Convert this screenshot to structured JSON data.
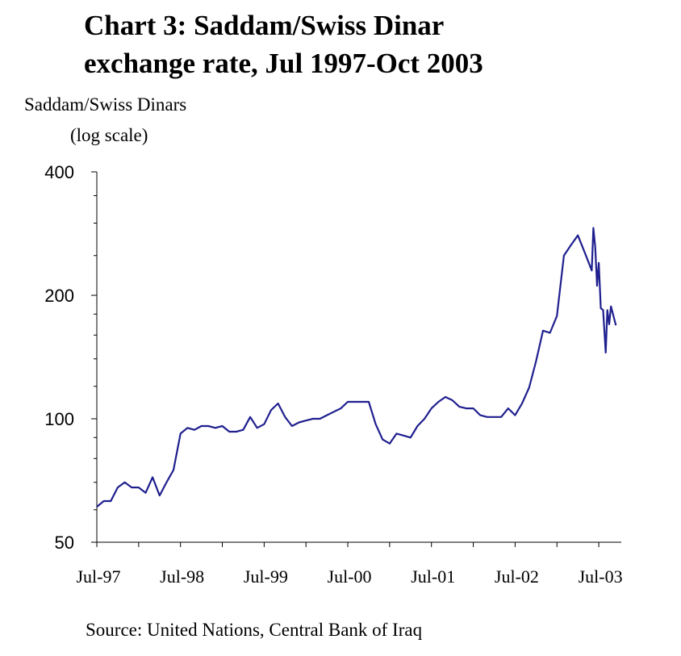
{
  "title_line1": "Chart 3: Saddam/Swiss Dinar",
  "title_line2": "exchange rate, Jul 1997-Oct 2003",
  "source": "Source: United Nations, Central Bank of Iraq",
  "chart_data": {
    "type": "line",
    "ylabel": "Saddam/Swiss Dinars",
    "ylabel_note": "(log scale)",
    "y_scale": "log",
    "ylim": [
      50,
      400
    ],
    "yticks": [
      50,
      100,
      200,
      400
    ],
    "ytick_labels": [
      "50",
      "100",
      "200",
      "400"
    ],
    "xlim": [
      "1997-07",
      "2003-10"
    ],
    "xtick_labels": [
      "Jul-97",
      "Jul-98",
      "Jul-99",
      "Jul-00",
      "Jul-01",
      "Jul-02",
      "Jul-03"
    ],
    "line_color": "#1f1f8f",
    "grid": false,
    "series": [
      {
        "points": [
          [
            "1997-07",
            61
          ],
          [
            "1997-08",
            63
          ],
          [
            "1997-09",
            63
          ],
          [
            "1997-10",
            68
          ],
          [
            "1997-11",
            70
          ],
          [
            "1997-12",
            68
          ],
          [
            "1998-01",
            68
          ],
          [
            "1998-02",
            66
          ],
          [
            "1998-03",
            72
          ],
          [
            "1998-04",
            65
          ],
          [
            "1998-05",
            70
          ],
          [
            "1998-06",
            75
          ],
          [
            "1998-07",
            92
          ],
          [
            "1998-08",
            95
          ],
          [
            "1998-09",
            94
          ],
          [
            "1998-10",
            96
          ],
          [
            "1998-11",
            96
          ],
          [
            "1998-12",
            95
          ],
          [
            "1999-01",
            96
          ],
          [
            "1999-02",
            93
          ],
          [
            "1999-03",
            93
          ],
          [
            "1999-04",
            94
          ],
          [
            "1999-05",
            101
          ],
          [
            "1999-06",
            95
          ],
          [
            "1999-07",
            97
          ],
          [
            "1999-08",
            105
          ],
          [
            "1999-09",
            109
          ],
          [
            "1999-10",
            101
          ],
          [
            "1999-11",
            96
          ],
          [
            "1999-12",
            98
          ],
          [
            "2000-01",
            99
          ],
          [
            "2000-02",
            100
          ],
          [
            "2000-03",
            100
          ],
          [
            "2000-04",
            102
          ],
          [
            "2000-05",
            104
          ],
          [
            "2000-06",
            106
          ],
          [
            "2000-07",
            110
          ],
          [
            "2000-08",
            110
          ],
          [
            "2000-09",
            110
          ],
          [
            "2000-10",
            110
          ],
          [
            "2000-11",
            97
          ],
          [
            "2000-12",
            89
          ],
          [
            "2001-01",
            87
          ],
          [
            "2001-02",
            92
          ],
          [
            "2001-03",
            91
          ],
          [
            "2001-04",
            90
          ],
          [
            "2001-05",
            96
          ],
          [
            "2001-06",
            100
          ],
          [
            "2001-07",
            106
          ],
          [
            "2001-08",
            110
          ],
          [
            "2001-09",
            113
          ],
          [
            "2001-10",
            111
          ],
          [
            "2001-11",
            107
          ],
          [
            "2001-12",
            106
          ],
          [
            "2002-01",
            106
          ],
          [
            "2002-02",
            102
          ],
          [
            "2002-03",
            101
          ],
          [
            "2002-04",
            101
          ],
          [
            "2002-05",
            101
          ],
          [
            "2002-06",
            106
          ],
          [
            "2002-07",
            102
          ],
          [
            "2002-08",
            109
          ],
          [
            "2002-09",
            119
          ],
          [
            "2002-10",
            138
          ],
          [
            "2002-11",
            164
          ],
          [
            "2002-12",
            162
          ],
          [
            "2003-01",
            178
          ],
          [
            "2003-02",
            250
          ],
          [
            "2003-03",
            265
          ],
          [
            "2003-04",
            280
          ],
          [
            "2003-05",
            254
          ],
          [
            "2003-06",
            230
          ],
          [
            "2003-06-08",
            292
          ],
          [
            "2003-06-16",
            262
          ],
          [
            "2003-06-24",
            211
          ],
          [
            "2003-07",
            240
          ],
          [
            "2003-07-10",
            186
          ],
          [
            "2003-07-20",
            184
          ],
          [
            "2003-08",
            145
          ],
          [
            "2003-08-08",
            184
          ],
          [
            "2003-08-16",
            170
          ],
          [
            "2003-08-24",
            188
          ],
          [
            "2003-09",
            181
          ],
          [
            "2003-09-15",
            169
          ]
        ]
      }
    ]
  }
}
